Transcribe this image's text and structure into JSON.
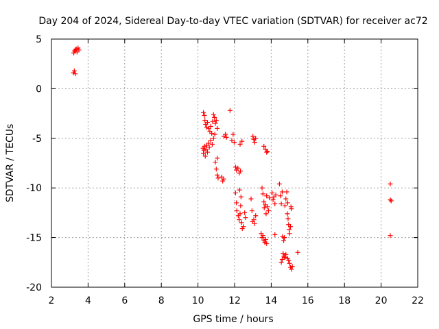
{
  "chart_data": {
    "type": "scatter",
    "title": "Day 204 of 2024, Sidereal Day-to-day VTEC variation (SDTVAR) for receiver ac72",
    "xlabel": "GPS time / hours",
    "ylabel": "SDTVAR / TECUs",
    "xlim": [
      2,
      22
    ],
    "ylim": [
      -20,
      5
    ],
    "xticks": [
      "2",
      "4",
      "6",
      "8",
      "10",
      "12",
      "14",
      "16",
      "18",
      "20",
      "22"
    ],
    "yticks": [
      "5",
      "0",
      "-5",
      "-10",
      "-15",
      "-20"
    ],
    "grid": true,
    "marker": "+",
    "color": "#ff0000",
    "series": [
      {
        "name": "SDTVAR",
        "points": [
          [
            3.2,
            1.6
          ],
          [
            3.25,
            1.8
          ],
          [
            3.3,
            1.5
          ],
          [
            3.22,
            3.6
          ],
          [
            3.26,
            3.8
          ],
          [
            3.3,
            3.9
          ],
          [
            3.35,
            4.0
          ],
          [
            3.4,
            3.7
          ],
          [
            3.45,
            4.1
          ],
          [
            3.5,
            3.9
          ],
          [
            10.3,
            -2.4
          ],
          [
            10.35,
            -2.7
          ],
          [
            10.38,
            -3.2
          ],
          [
            10.42,
            -3.6
          ],
          [
            10.48,
            -3.9
          ],
          [
            10.52,
            -3.4
          ],
          [
            10.58,
            -4.0
          ],
          [
            10.65,
            -4.3
          ],
          [
            10.7,
            -3.8
          ],
          [
            10.75,
            -4.5
          ],
          [
            10.8,
            -3.3
          ],
          [
            10.85,
            -2.6
          ],
          [
            10.9,
            -2.9
          ],
          [
            10.95,
            -3.5
          ],
          [
            11.0,
            -3.2
          ],
          [
            11.05,
            -4.0
          ],
          [
            10.28,
            -6.0
          ],
          [
            10.3,
            -6.5
          ],
          [
            10.33,
            -6.2
          ],
          [
            10.36,
            -5.8
          ],
          [
            10.4,
            -6.8
          ],
          [
            10.44,
            -6.1
          ],
          [
            10.48,
            -5.7
          ],
          [
            10.52,
            -6.4
          ],
          [
            10.57,
            -5.5
          ],
          [
            10.62,
            -5.9
          ],
          [
            10.7,
            -5.2
          ],
          [
            10.78,
            -5.6
          ],
          [
            10.85,
            -5.0
          ],
          [
            10.92,
            -4.6
          ],
          [
            10.95,
            -7.4
          ],
          [
            11.0,
            -8.1
          ],
          [
            11.05,
            -8.7
          ],
          [
            11.1,
            -9.0
          ],
          [
            11.05,
            -7.0
          ],
          [
            11.3,
            -8.9
          ],
          [
            11.35,
            -9.3
          ],
          [
            11.4,
            -9.1
          ],
          [
            11.42,
            -4.8
          ],
          [
            11.5,
            -4.6
          ],
          [
            11.55,
            -4.9
          ],
          [
            11.75,
            -2.2
          ],
          [
            11.85,
            -5.2
          ],
          [
            11.92,
            -4.6
          ],
          [
            11.98,
            -5.4
          ],
          [
            12.05,
            -7.9
          ],
          [
            12.1,
            -8.2
          ],
          [
            12.18,
            -8.0
          ],
          [
            12.25,
            -8.5
          ],
          [
            12.32,
            -8.3
          ],
          [
            12.3,
            -5.6
          ],
          [
            12.4,
            -5.3
          ],
          [
            12.05,
            -10.5
          ],
          [
            12.1,
            -11.5
          ],
          [
            12.12,
            -12.3
          ],
          [
            12.2,
            -12.8
          ],
          [
            12.25,
            -13.2
          ],
          [
            12.3,
            -12.6
          ],
          [
            12.33,
            -11.8
          ],
          [
            12.38,
            -13.5
          ],
          [
            12.42,
            -14.1
          ],
          [
            12.48,
            -13.9
          ],
          [
            12.55,
            -12.5
          ],
          [
            12.6,
            -13.0
          ],
          [
            12.27,
            -10.2
          ],
          [
            12.35,
            -10.9
          ],
          [
            12.9,
            -11.1
          ],
          [
            12.95,
            -12.3
          ],
          [
            12.98,
            -13.4
          ],
          [
            13.05,
            -13.2
          ],
          [
            13.1,
            -13.6
          ],
          [
            13.15,
            -12.8
          ],
          [
            13.0,
            -4.8
          ],
          [
            13.05,
            -5.1
          ],
          [
            13.1,
            -5.4
          ],
          [
            13.15,
            -5.0
          ],
          [
            13.5,
            -10.0
          ],
          [
            13.55,
            -10.6
          ],
          [
            13.6,
            -11.4
          ],
          [
            13.62,
            -12.0
          ],
          [
            13.68,
            -11.7
          ],
          [
            13.72,
            -12.6
          ],
          [
            13.75,
            -10.8
          ],
          [
            13.8,
            -11.9
          ],
          [
            13.85,
            -12.3
          ],
          [
            13.9,
            -11.0
          ],
          [
            13.45,
            -14.6
          ],
          [
            13.5,
            -15.0
          ],
          [
            13.55,
            -14.8
          ],
          [
            13.6,
            -15.3
          ],
          [
            13.65,
            -15.5
          ],
          [
            13.7,
            -15.2
          ],
          [
            13.75,
            -15.6
          ],
          [
            13.6,
            -5.8
          ],
          [
            13.68,
            -6.1
          ],
          [
            13.75,
            -6.4
          ],
          [
            13.8,
            -6.3
          ],
          [
            14.05,
            -10.5
          ],
          [
            14.1,
            -11.2
          ],
          [
            14.15,
            -10.9
          ],
          [
            14.2,
            -11.6
          ],
          [
            14.25,
            -10.7
          ],
          [
            14.2,
            -14.7
          ],
          [
            14.45,
            -9.6
          ],
          [
            14.5,
            -10.8
          ],
          [
            14.55,
            -11.6
          ],
          [
            14.6,
            -10.4
          ],
          [
            14.62,
            -14.9
          ],
          [
            14.68,
            -15.3
          ],
          [
            14.72,
            -15.0
          ],
          [
            14.75,
            -11.8
          ],
          [
            14.8,
            -11.1
          ],
          [
            14.85,
            -10.4
          ],
          [
            14.9,
            -11.5
          ],
          [
            14.88,
            -12.6
          ],
          [
            14.92,
            -13.1
          ],
          [
            14.95,
            -13.7
          ],
          [
            14.98,
            -14.2
          ],
          [
            15.0,
            -14.6
          ],
          [
            15.05,
            -13.9
          ],
          [
            15.08,
            -11.9
          ],
          [
            15.1,
            -12.1
          ],
          [
            14.55,
            -17.5
          ],
          [
            14.6,
            -17.2
          ],
          [
            14.65,
            -16.6
          ],
          [
            14.7,
            -16.9
          ],
          [
            14.75,
            -17.0
          ],
          [
            14.8,
            -16.7
          ],
          [
            14.9,
            -17.1
          ],
          [
            14.95,
            -17.3
          ],
          [
            15.0,
            -17.6
          ],
          [
            15.05,
            -18.0
          ],
          [
            15.1,
            -18.2
          ],
          [
            15.15,
            -17.9
          ],
          [
            15.45,
            -16.5
          ],
          [
            20.5,
            -9.6
          ],
          [
            20.5,
            -11.2
          ],
          [
            20.55,
            -11.3
          ],
          [
            20.5,
            -14.8
          ]
        ]
      }
    ]
  }
}
